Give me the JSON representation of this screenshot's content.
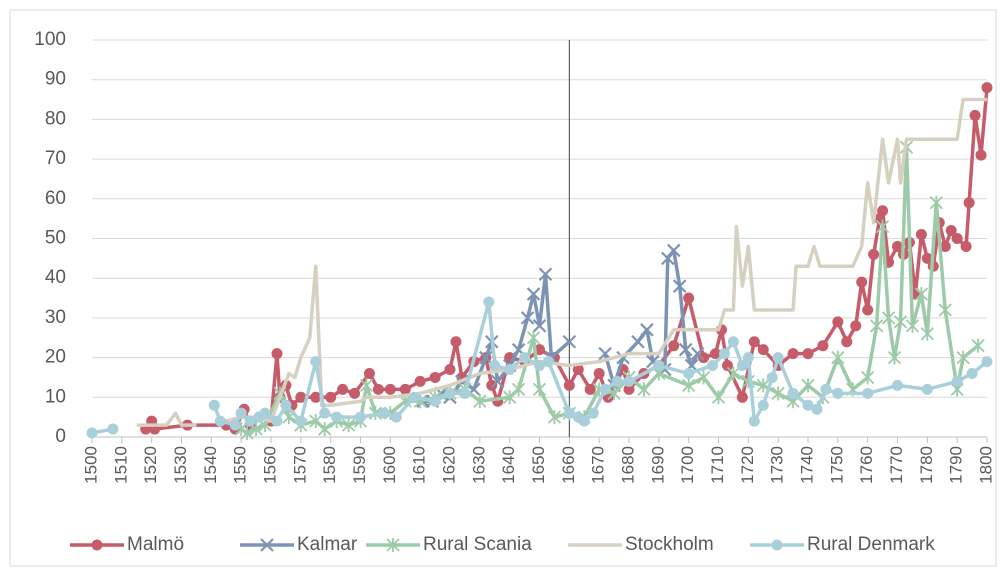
{
  "chart_data": {
    "type": "line",
    "xlim": [
      1500,
      1800
    ],
    "ylim": [
      0,
      100
    ],
    "xticks": [
      1500,
      1510,
      1520,
      1530,
      1540,
      1550,
      1560,
      1570,
      1580,
      1590,
      1600,
      1610,
      1620,
      1630,
      1640,
      1650,
      1660,
      1670,
      1680,
      1690,
      1700,
      1710,
      1720,
      1730,
      1740,
      1750,
      1760,
      1770,
      1780,
      1790,
      1800
    ],
    "yticks": [
      0,
      10,
      20,
      30,
      40,
      50,
      60,
      70,
      80,
      90,
      100
    ],
    "grid": true,
    "legend": "bottom",
    "vline": 1660,
    "series": [
      {
        "name": "Malmö",
        "color": "#c65b6a",
        "marker": "circle",
        "x": [
          1518,
          1520,
          1521,
          1532,
          1545,
          1548,
          1551,
          1553,
          1556,
          1560,
          1562,
          1563,
          1565,
          1567,
          1570,
          1575,
          1580,
          1584,
          1588,
          1593,
          1596,
          1600,
          1605,
          1610,
          1615,
          1620,
          1622,
          1624,
          1628,
          1632,
          1634,
          1636,
          1640,
          1645,
          1650,
          1655,
          1660,
          1663,
          1667,
          1670,
          1673,
          1678,
          1680,
          1685,
          1690,
          1695,
          1700,
          1705,
          1709,
          1711,
          1713,
          1718,
          1722,
          1725,
          1730,
          1735,
          1740,
          1745,
          1750,
          1753,
          1756,
          1758,
          1760,
          1762,
          1764,
          1765,
          1767,
          1770,
          1772,
          1774,
          1776,
          1778,
          1780,
          1782,
          1784,
          1786,
          1788,
          1790,
          1793,
          1794,
          1796,
          1798,
          1800
        ],
        "values": [
          2,
          4,
          2,
          3,
          3,
          2,
          7,
          3,
          5,
          4,
          21,
          10,
          13,
          8,
          10,
          10,
          10,
          12,
          11,
          16,
          12,
          12,
          12,
          14,
          15,
          17,
          24,
          15,
          19,
          20,
          13,
          9,
          20,
          19,
          22,
          20,
          13,
          17,
          12,
          16,
          10,
          17,
          12,
          16,
          18,
          23,
          35,
          20,
          21,
          27,
          18,
          10,
          24,
          22,
          18,
          21,
          21,
          23,
          29,
          24,
          28,
          39,
          32,
          46,
          55,
          57,
          44,
          48,
          46,
          49,
          36,
          51,
          45,
          43,
          54,
          48,
          52,
          50,
          48,
          59,
          81,
          71,
          88
        ]
      },
      {
        "name": "Kalmar",
        "color": "#7d93b3",
        "marker": "x",
        "x": [
          1611,
          1614,
          1617,
          1620,
          1624,
          1628,
          1632,
          1634,
          1636,
          1640,
          1643,
          1646,
          1648,
          1650,
          1652,
          1654,
          1660,
          1666,
          1672,
          1675,
          1678,
          1683,
          1686,
          1688,
          1692,
          1693,
          1695,
          1697,
          1699,
          1701,
          1703
        ],
        "values": [
          9,
          9,
          11,
          10,
          14,
          12,
          20,
          24,
          14,
          18,
          22,
          30,
          36,
          28,
          41,
          20,
          24,
          null,
          21,
          13,
          20,
          24,
          27,
          19,
          17,
          45,
          47,
          38,
          22,
          18,
          21
        ]
      },
      {
        "name": "Rural Scania",
        "color": "#9dcaa9",
        "marker": "star",
        "x": [
          1550,
          1552,
          1555,
          1558,
          1563,
          1566,
          1570,
          1575,
          1578,
          1582,
          1586,
          1590,
          1592,
          1595,
          1600,
          1605,
          1610,
          1615,
          1620,
          1625,
          1630,
          1640,
          1643,
          1648,
          1650,
          1655,
          1660,
          1665,
          1670,
          1675,
          1680,
          1685,
          1690,
          1700,
          1705,
          1710,
          1715,
          1720,
          1725,
          1730,
          1735,
          1740,
          1745,
          1750,
          1755,
          1760,
          1763,
          1765,
          1767,
          1769,
          1771,
          1773,
          1775,
          1778,
          1780,
          1783,
          1786,
          1790,
          1792,
          1797
        ],
        "values": [
          2,
          1,
          2,
          3,
          11,
          5,
          3,
          4,
          2,
          4,
          3,
          4,
          13,
          6,
          6,
          9,
          9,
          10,
          11,
          12,
          9,
          10,
          12,
          25,
          12,
          5,
          6,
          5,
          12,
          11,
          15,
          12,
          16,
          13,
          15,
          10,
          16,
          14,
          13,
          11,
          9,
          13,
          10,
          20,
          12,
          15,
          28,
          53,
          30,
          20,
          29,
          73,
          28,
          36,
          26,
          59,
          32,
          12,
          20,
          23
        ]
      },
      {
        "name": "Stockholm",
        "color": "#d6d0c1",
        "marker": "none",
        "x": [
          1515,
          1520,
          1525,
          1528,
          1530,
          1535,
          1540,
          1545,
          1550,
          1555,
          1560,
          1563,
          1566,
          1568,
          1570,
          1573,
          1575,
          1577,
          1580,
          1590,
          1592,
          1600,
          1610,
          1620,
          1630,
          1640,
          1650,
          1660,
          1670,
          1680,
          1690,
          1695,
          1700,
          1710,
          1712,
          1715,
          1716,
          1718,
          1720,
          1722,
          1730,
          1735,
          1736,
          1740,
          1742,
          1744,
          1755,
          1758,
          1760,
          1762,
          1765,
          1767,
          1770,
          1771,
          1773,
          1775,
          1790,
          1792,
          1800
        ],
        "values": [
          3,
          3,
          3,
          6,
          3,
          3,
          null,
          4,
          5,
          5,
          4,
          10,
          16,
          15,
          20,
          25,
          43,
          8,
          8,
          9,
          10,
          10,
          11,
          13,
          16,
          17,
          19,
          18,
          19,
          21,
          21,
          27,
          27,
          27,
          32,
          32,
          53,
          38,
          48,
          32,
          32,
          32,
          43,
          43,
          48,
          43,
          43,
          48,
          64,
          54,
          75,
          64,
          75,
          64,
          75,
          75,
          75,
          85,
          85
        ]
      },
      {
        "name": "Rural Denmark",
        "color": "#a9cfdb",
        "marker": "circle",
        "x": [
          1500,
          1507,
          1520,
          1541,
          1543,
          1548,
          1550,
          1553,
          1556,
          1558,
          1562,
          1565,
          1570,
          1575,
          1578,
          1582,
          1590,
          1598,
          1602,
          1608,
          1615,
          1620,
          1625,
          1633,
          1635,
          1640,
          1645,
          1650,
          1653,
          1660,
          1663,
          1665,
          1668,
          1672,
          1676,
          1680,
          1690,
          1700,
          1708,
          1712,
          1715,
          1718,
          1720,
          1722,
          1725,
          1728,
          1730,
          1735,
          1740,
          1743,
          1746,
          1750,
          1760,
          1770,
          1780,
          1790,
          1795,
          1800
        ],
        "values": [
          1,
          2,
          null,
          8,
          4,
          3,
          6,
          4,
          5,
          6,
          4,
          8,
          4,
          19,
          6,
          5,
          5,
          6,
          5,
          10,
          9,
          11,
          11,
          34,
          18,
          17,
          20,
          18,
          19,
          6,
          5,
          4,
          6,
          12,
          14,
          14,
          18,
          16,
          18,
          21,
          24,
          18,
          20,
          4,
          8,
          15,
          20,
          11,
          8,
          7,
          12,
          11,
          11,
          13,
          12,
          14,
          16,
          19
        ]
      }
    ]
  }
}
